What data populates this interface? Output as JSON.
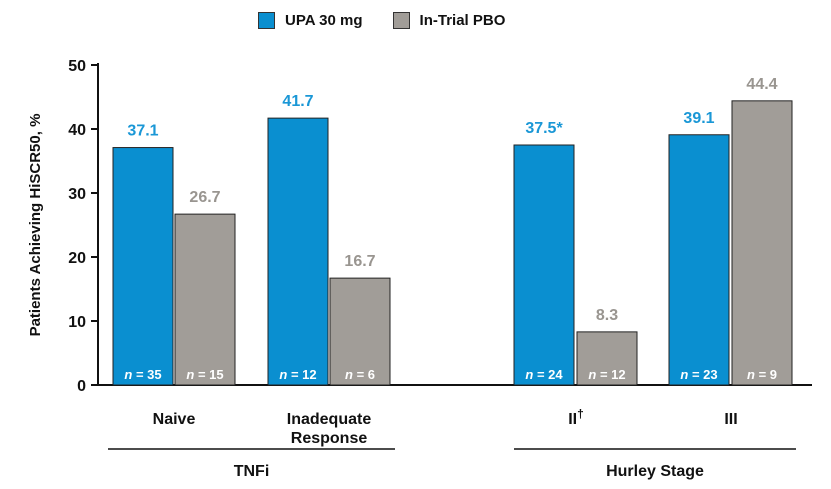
{
  "chart_data": {
    "type": "bar",
    "ylabel": "Patients Achieving HiSCR50, %",
    "ylim": [
      0,
      50
    ],
    "yticks": [
      0,
      10,
      20,
      30,
      40,
      50
    ],
    "colors": {
      "UPA 30 mg": "#0a8fd0",
      "In-Trial PBO": "#a19d98",
      "upa_label": "#1a97d6",
      "pbo_label": "#999590"
    },
    "series": [
      {
        "name": "UPA 30 mg",
        "values": [
          37.1,
          41.7,
          37.5,
          39.1
        ],
        "labels": [
          "37.1",
          "41.7",
          "37.5*",
          "39.1"
        ],
        "n": [
          "35",
          "12",
          "24",
          "23"
        ]
      },
      {
        "name": "In-Trial PBO",
        "values": [
          26.7,
          16.7,
          8.3,
          44.4
        ],
        "labels": [
          "26.7",
          "16.7",
          "8.3",
          "44.4"
        ],
        "n": [
          "15",
          "6",
          "12",
          "9"
        ]
      }
    ],
    "categories": [
      {
        "label": [
          "Naive"
        ],
        "sup": ""
      },
      {
        "label": [
          "Inadequate",
          "Response"
        ],
        "sup": ""
      },
      {
        "label": [
          "II"
        ],
        "sup": "†"
      },
      {
        "label": [
          "III"
        ],
        "sup": ""
      }
    ],
    "groups": [
      {
        "label": "TNFi",
        "categories": [
          0,
          1
        ]
      },
      {
        "label": "Hurley Stage",
        "categories": [
          2,
          3
        ]
      }
    ],
    "n_prefix": "n",
    "n_sep": " = "
  }
}
